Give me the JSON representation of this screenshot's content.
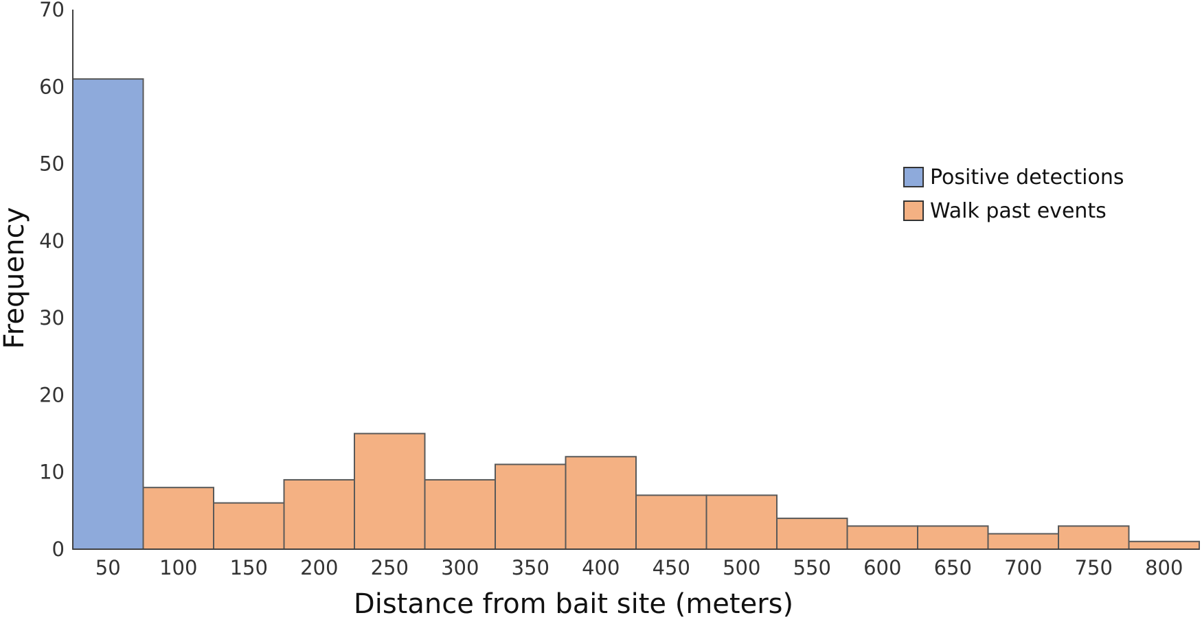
{
  "chart_data": {
    "type": "bar",
    "categories": [
      "50",
      "100",
      "150",
      "200",
      "250",
      "300",
      "350",
      "400",
      "450",
      "500",
      "550",
      "600",
      "650",
      "700",
      "750",
      "800"
    ],
    "series": [
      {
        "name": "Positive detections",
        "color": "#8eaadb",
        "values": [
          61,
          null,
          null,
          null,
          null,
          null,
          null,
          null,
          null,
          null,
          null,
          null,
          null,
          null,
          null,
          null
        ]
      },
      {
        "name": "Walk past events",
        "color": "#f4b183",
        "values": [
          null,
          8,
          6,
          9,
          15,
          9,
          11,
          12,
          7,
          7,
          4,
          3,
          3,
          2,
          3,
          1
        ]
      }
    ],
    "xlabel": "Distance from bait site (meters)",
    "ylabel": "Frequency",
    "ylim": [
      0,
      70
    ],
    "yticks": [
      "0",
      "10",
      "20",
      "30",
      "40",
      "50",
      "60",
      "70"
    ],
    "grid": false,
    "legend_position": "top-right",
    "bar_outline_color": "#595959",
    "axis_color": "#404040"
  }
}
